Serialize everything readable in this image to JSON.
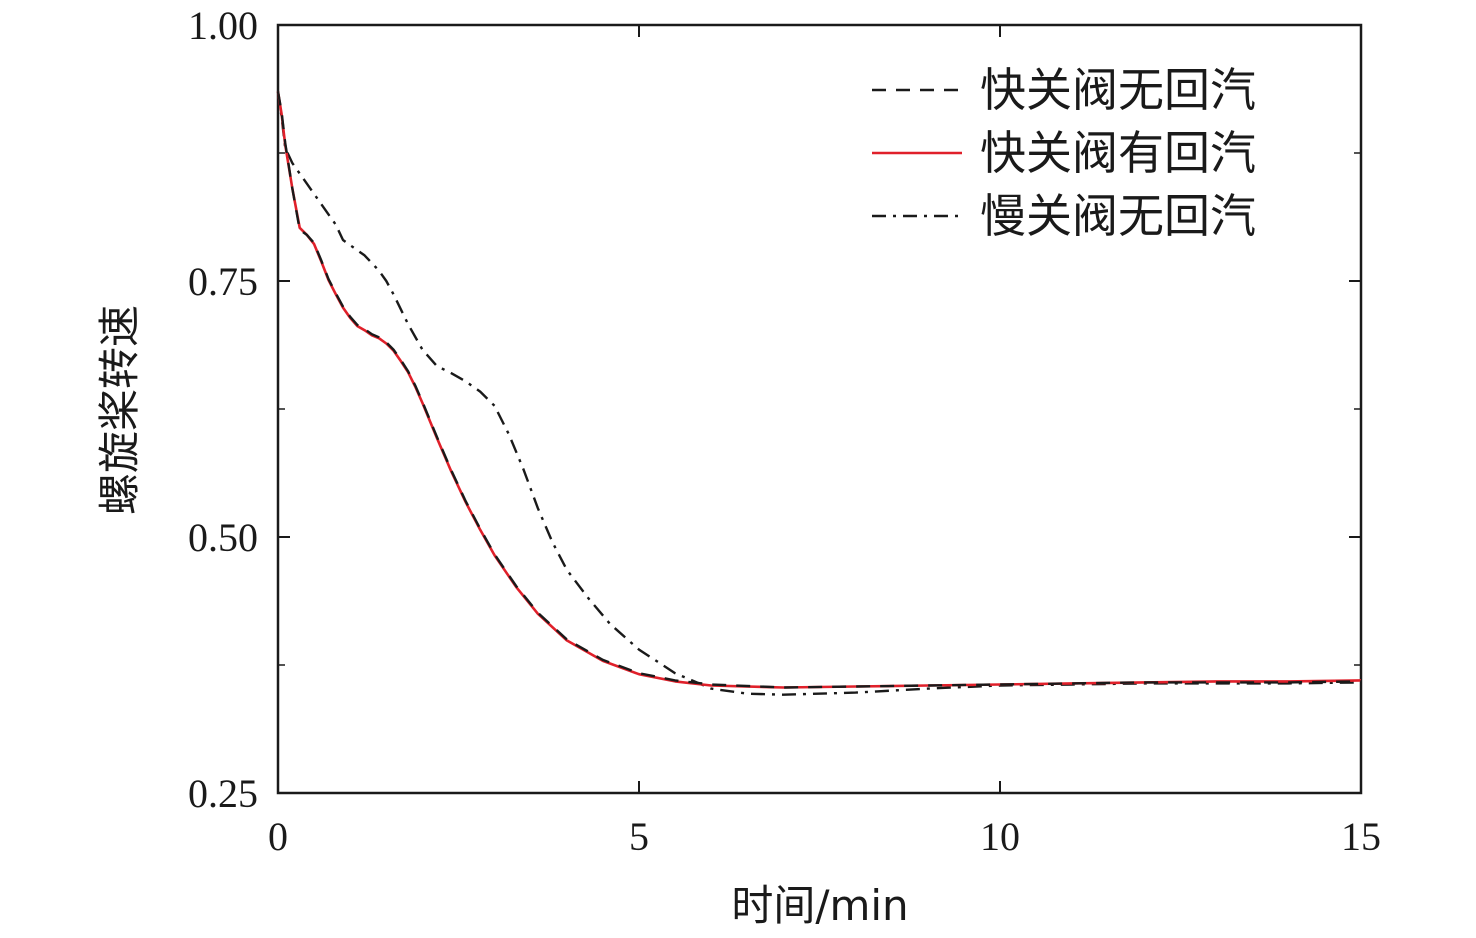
{
  "chart_data": {
    "type": "line",
    "xlabel": "时间/min",
    "ylabel": "螺旋桨转速",
    "xlim": [
      0,
      15
    ],
    "ylim": [
      0.25,
      1.0
    ],
    "x_ticks": [
      0,
      5,
      10,
      15
    ],
    "x_tick_labels": [
      "0",
      "5",
      "10",
      "15"
    ],
    "y_ticks": [
      0.25,
      0.5,
      0.75,
      1.0
    ],
    "y_tick_labels": [
      "0.25",
      "0.50",
      "0.75",
      "1.00"
    ],
    "grid": false,
    "legend_position": "top-right",
    "series": [
      {
        "name": "快关阀无回汽",
        "color": "#1a1a1a",
        "line_style": "dashed",
        "x": [
          0,
          0.05,
          0.1,
          0.2,
          0.3,
          0.4,
          0.5,
          0.6,
          0.7,
          0.8,
          0.9,
          1.0,
          1.1,
          1.2,
          1.3,
          1.4,
          1.5,
          1.6,
          1.7,
          1.8,
          1.9,
          2.0,
          2.2,
          2.4,
          2.6,
          2.8,
          3.0,
          3.3,
          3.6,
          4.0,
          4.5,
          5.0,
          5.5,
          6.0,
          7.0,
          8.0,
          9.0,
          10.0,
          11.0,
          12.0,
          13.0,
          14.0,
          15.0
        ],
        "values": [
          0.935,
          0.915,
          0.885,
          0.84,
          0.8,
          0.795,
          0.787,
          0.77,
          0.752,
          0.738,
          0.725,
          0.715,
          0.707,
          0.703,
          0.698,
          0.695,
          0.69,
          0.683,
          0.673,
          0.662,
          0.648,
          0.632,
          0.598,
          0.565,
          0.535,
          0.508,
          0.483,
          0.452,
          0.426,
          0.4,
          0.38,
          0.367,
          0.36,
          0.356,
          0.353,
          0.354,
          0.355,
          0.356,
          0.357,
          0.358,
          0.358,
          0.358,
          0.359
        ]
      },
      {
        "name": "快关阀有回汽",
        "color": "#e0202a",
        "line_style": "solid",
        "x": [
          0,
          0.05,
          0.1,
          0.2,
          0.3,
          0.4,
          0.5,
          0.6,
          0.7,
          0.8,
          0.9,
          1.0,
          1.1,
          1.2,
          1.3,
          1.4,
          1.5,
          1.6,
          1.7,
          1.8,
          1.9,
          2.0,
          2.2,
          2.4,
          2.6,
          2.8,
          3.0,
          3.3,
          3.6,
          4.0,
          4.5,
          5.0,
          5.5,
          6.0,
          7.0,
          8.0,
          9.0,
          10.0,
          11.0,
          12.0,
          13.0,
          14.0,
          15.0
        ],
        "values": [
          0.935,
          0.913,
          0.883,
          0.84,
          0.802,
          0.795,
          0.786,
          0.769,
          0.751,
          0.737,
          0.724,
          0.714,
          0.706,
          0.702,
          0.697,
          0.694,
          0.689,
          0.682,
          0.672,
          0.661,
          0.647,
          0.631,
          0.597,
          0.564,
          0.534,
          0.507,
          0.482,
          0.451,
          0.425,
          0.399,
          0.379,
          0.366,
          0.359,
          0.355,
          0.353,
          0.354,
          0.355,
          0.356,
          0.357,
          0.358,
          0.359,
          0.359,
          0.36
        ]
      },
      {
        "name": "慢关阀无回汽",
        "color": "#1a1a1a",
        "line_style": "dashdot",
        "x": [
          0,
          0.05,
          0.1,
          0.2,
          0.4,
          0.6,
          0.8,
          0.9,
          1.0,
          1.2,
          1.4,
          1.5,
          1.6,
          1.8,
          2.0,
          2.2,
          2.4,
          2.6,
          2.8,
          3.0,
          3.2,
          3.4,
          3.6,
          3.8,
          4.0,
          4.3,
          4.6,
          5.0,
          5.5,
          6.0,
          6.5,
          7.0,
          8.0,
          9.0,
          10.0,
          11.0,
          12.0,
          13.0,
          14.0,
          15.0
        ],
        "values": [
          0.935,
          0.91,
          0.88,
          0.865,
          0.845,
          0.825,
          0.805,
          0.79,
          0.785,
          0.775,
          0.76,
          0.75,
          0.737,
          0.708,
          0.683,
          0.667,
          0.66,
          0.652,
          0.642,
          0.628,
          0.6,
          0.566,
          0.528,
          0.495,
          0.468,
          0.44,
          0.415,
          0.39,
          0.367,
          0.352,
          0.347,
          0.346,
          0.348,
          0.352,
          0.355,
          0.356,
          0.357,
          0.357,
          0.357,
          0.358
        ]
      }
    ]
  }
}
